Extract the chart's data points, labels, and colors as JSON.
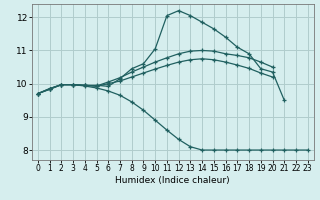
{
  "xlabel": "Humidex (Indice chaleur)",
  "background_color": "#d6eeee",
  "grid_color": "#b0cccc",
  "line_color": "#206060",
  "xlim": [
    -0.5,
    23.5
  ],
  "ylim": [
    7.7,
    12.4
  ],
  "xticks": [
    0,
    1,
    2,
    3,
    4,
    5,
    6,
    7,
    8,
    9,
    10,
    11,
    12,
    13,
    14,
    15,
    16,
    17,
    18,
    19,
    20,
    21,
    22,
    23
  ],
  "yticks": [
    8,
    9,
    10,
    11,
    12
  ],
  "lines": [
    {
      "x": [
        0,
        1,
        2,
        3,
        4,
        5,
        6,
        7,
        8,
        9,
        10,
        11,
        12,
        13,
        14,
        15,
        16,
        17,
        18,
        19,
        20,
        21
      ],
      "y": [
        9.7,
        9.85,
        9.97,
        9.97,
        9.95,
        9.95,
        9.92,
        10.15,
        10.45,
        10.6,
        11.05,
        12.05,
        12.2,
        12.05,
        11.85,
        11.65,
        11.4,
        11.1,
        10.9,
        10.45,
        10.35,
        9.5
      ]
    },
    {
      "x": [
        0,
        1,
        2,
        3,
        4,
        5,
        6,
        7,
        8,
        9,
        10,
        11,
        12,
        13,
        14,
        15,
        16,
        17,
        18,
        19,
        20
      ],
      "y": [
        9.7,
        9.85,
        9.97,
        9.97,
        9.95,
        9.93,
        10.05,
        10.18,
        10.35,
        10.5,
        10.65,
        10.78,
        10.9,
        10.98,
        11.0,
        10.98,
        10.9,
        10.85,
        10.78,
        10.65,
        10.5
      ]
    },
    {
      "x": [
        0,
        1,
        2,
        3,
        4,
        5,
        6,
        7,
        8,
        9,
        10,
        11,
        12,
        13,
        14,
        15,
        16,
        17,
        18,
        19,
        20
      ],
      "y": [
        9.7,
        9.83,
        9.97,
        9.97,
        9.95,
        9.92,
        10.0,
        10.08,
        10.2,
        10.32,
        10.44,
        10.55,
        10.65,
        10.72,
        10.75,
        10.72,
        10.65,
        10.56,
        10.46,
        10.32,
        10.2
      ]
    },
    {
      "x": [
        0,
        1,
        2,
        3,
        4,
        5,
        6,
        7,
        8,
        9,
        10,
        11,
        12,
        13,
        14,
        15,
        16,
        17,
        18,
        19,
        20,
        21,
        22,
        23
      ],
      "y": [
        9.7,
        9.83,
        9.97,
        9.97,
        9.93,
        9.87,
        9.78,
        9.65,
        9.45,
        9.2,
        8.9,
        8.6,
        8.32,
        8.1,
        8.0,
        8.0,
        8.0,
        8.0,
        8.0,
        8.0,
        8.0,
        8.0,
        8.0,
        8.0
      ]
    }
  ]
}
